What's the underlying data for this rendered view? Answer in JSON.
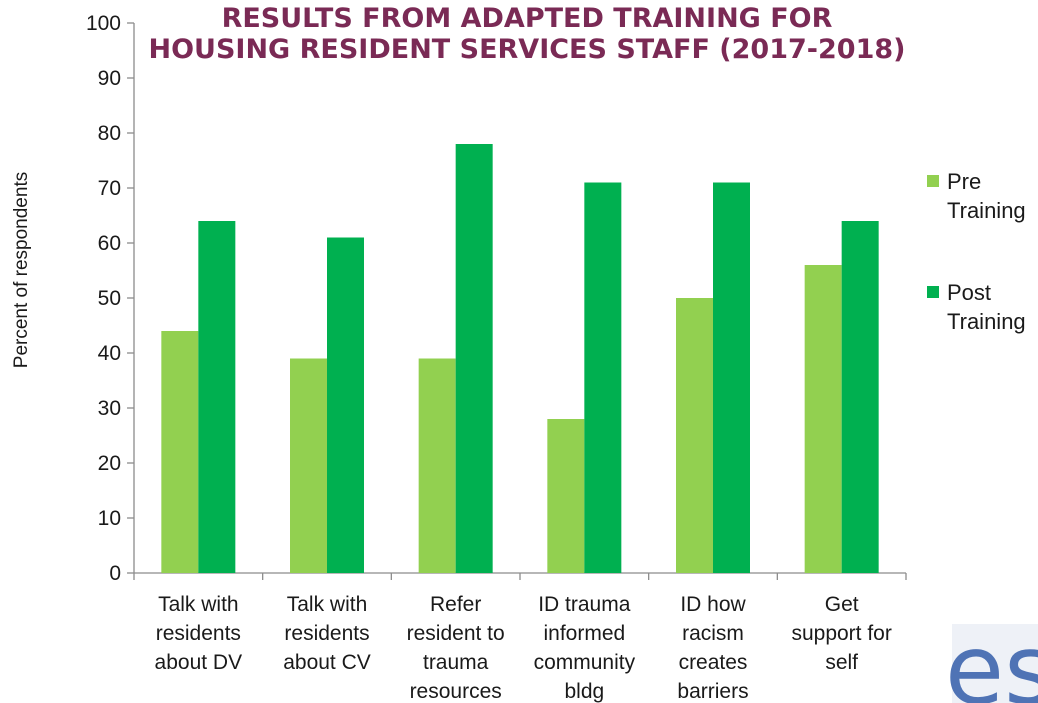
{
  "chart_data": {
    "type": "bar",
    "title": "RESULTS FROM ADAPTED TRAINING FOR HOUSING RESIDENT SERVICES STAFF (2017-2018)",
    "title_lines": [
      "RESULTS FROM ADAPTED TRAINING FOR",
      "HOUSING RESIDENT SERVICES STAFF (2017-2018)"
    ],
    "ylabel": "Percent of respondents",
    "xlabel": "",
    "ylim": [
      0,
      100
    ],
    "yticks": [
      0,
      10,
      20,
      30,
      40,
      50,
      60,
      70,
      80,
      90,
      100
    ],
    "categories": [
      "Talk with residents about DV",
      "Talk with residents about CV",
      "Refer resident to trauma resources",
      "ID trauma informed community bldg",
      "ID how racism creates barriers",
      "Get support for self"
    ],
    "category_lines": [
      [
        "Talk with",
        "residents",
        "about DV"
      ],
      [
        "Talk with",
        "residents",
        "about CV"
      ],
      [
        "Refer",
        "resident to",
        "trauma",
        "resources"
      ],
      [
        "ID trauma",
        "informed",
        "community",
        "bldg"
      ],
      [
        "ID how",
        "racism",
        "creates",
        "barriers"
      ],
      [
        "Get",
        "support for",
        "self"
      ]
    ],
    "series": [
      {
        "name": "Pre Training",
        "legend_lines": [
          "Pre",
          "Training"
        ],
        "color": "#92d050",
        "values": [
          44,
          39,
          39,
          28,
          50,
          56
        ]
      },
      {
        "name": "Post Training",
        "legend_lines": [
          "Post",
          "Training"
        ],
        "color": "#00b050",
        "values": [
          64,
          61,
          78,
          71,
          71,
          64
        ]
      }
    ],
    "legend_position": "right",
    "grid": false
  },
  "logo": {
    "text": "es",
    "color": "#4f73b5"
  }
}
